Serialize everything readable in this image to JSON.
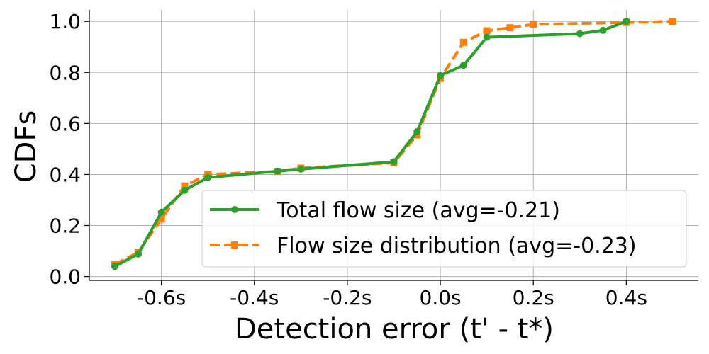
{
  "chart_data": {
    "type": "line",
    "xlabel": "Detection error (t' - t*)",
    "ylabel": "CDFs",
    "xlim": [
      -0.755,
      0.555
    ],
    "ylim": [
      -0.015,
      1.045
    ],
    "x_ticks": [
      -0.6,
      -0.4,
      -0.2,
      0.0,
      0.2,
      0.4
    ],
    "x_tick_labels": [
      "-0.6s",
      "-0.4s",
      "-0.2s",
      "0.0s",
      "0.2s",
      "0.4s"
    ],
    "y_ticks": [
      0.0,
      0.2,
      0.4,
      0.6,
      0.8,
      1.0
    ],
    "y_tick_labels": [
      "0.0",
      "0.2",
      "0.4",
      "0.6",
      "0.8",
      "1.0"
    ],
    "grid": true,
    "legend_position": "lower-right",
    "series": [
      {
        "name": "Total flow size (avg=-0.21)",
        "color": "#2ca02c",
        "line_style": "solid",
        "marker": "circle",
        "x": [
          -0.7,
          -0.65,
          -0.6,
          -0.55,
          -0.5,
          -0.35,
          -0.3,
          -0.1,
          -0.05,
          0.0,
          0.05,
          0.1,
          0.3,
          0.35,
          0.4
        ],
        "y": [
          0.04,
          0.088,
          0.252,
          0.338,
          0.388,
          0.413,
          0.421,
          0.45,
          0.568,
          0.788,
          0.828,
          0.938,
          0.952,
          0.965,
          1.0
        ]
      },
      {
        "name": "Flow size distribution (avg=-0.23)",
        "color": "#ff7f0e",
        "line_style": "dashed",
        "marker": "square",
        "x": [
          -0.7,
          -0.65,
          -0.6,
          -0.55,
          -0.5,
          -0.35,
          -0.3,
          -0.1,
          -0.05,
          0.0,
          0.05,
          0.1,
          0.15,
          0.2,
          0.4,
          0.5
        ],
        "y": [
          0.048,
          0.095,
          0.225,
          0.355,
          0.4,
          0.412,
          0.425,
          0.446,
          0.555,
          0.777,
          0.918,
          0.963,
          0.975,
          0.988,
          0.996,
          1.0
        ]
      }
    ]
  }
}
